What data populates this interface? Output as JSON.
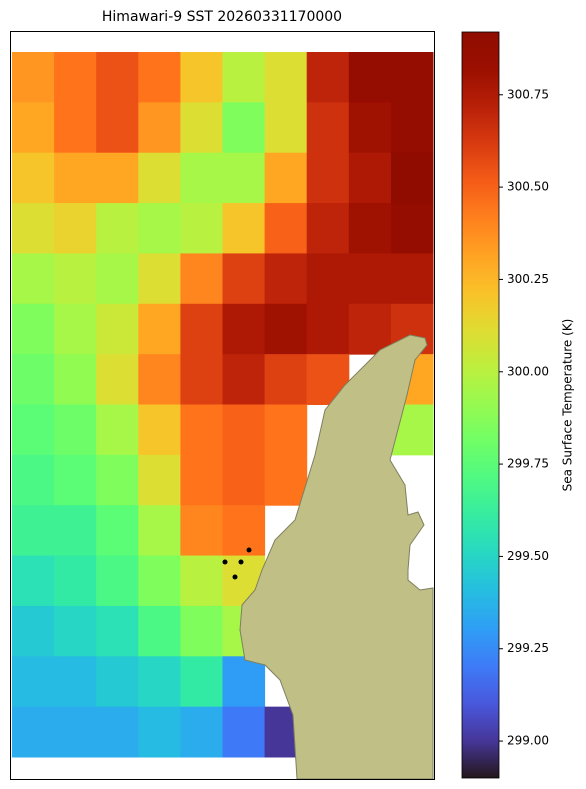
{
  "chart_data": {
    "type": "heatmap",
    "title": "Himawari-9 SST 20260331170000",
    "colorbar": {
      "label": "Sea Surface Temperature (K)",
      "lim": [
        298.9,
        300.92
      ],
      "colormap": "turbo",
      "ticks": [
        {
          "value": 299,
          "label": "299.00"
        },
        {
          "value": 299.25,
          "label": "299.25"
        },
        {
          "value": 299.5,
          "label": "299.50"
        },
        {
          "value": 299.75,
          "label": "299.75"
        },
        {
          "value": 300,
          "label": "300.00"
        },
        {
          "value": 300.25,
          "label": "300.25"
        },
        {
          "value": 300.5,
          "label": "300.50"
        },
        {
          "value": 300.75,
          "label": "300.75"
        }
      ]
    },
    "values": [
      [
        300.35,
        300.45,
        300.55,
        300.45,
        300.2,
        300.0,
        300.1,
        300.7,
        300.85,
        300.85
      ],
      [
        300.3,
        300.45,
        300.55,
        300.35,
        300.1,
        299.85,
        300.1,
        300.65,
        300.8,
        300.85
      ],
      [
        300.2,
        300.3,
        300.3,
        300.1,
        299.95,
        299.95,
        300.3,
        300.65,
        300.75,
        300.9
      ],
      [
        300.1,
        300.15,
        300.0,
        299.95,
        300.0,
        300.2,
        300.5,
        300.7,
        300.8,
        300.85
      ],
      [
        299.95,
        300.0,
        299.95,
        300.1,
        300.4,
        300.6,
        300.7,
        300.75,
        300.75,
        300.75
      ],
      [
        299.85,
        299.95,
        300.05,
        300.3,
        300.6,
        300.75,
        300.8,
        300.75,
        300.7,
        300.65
      ],
      [
        299.8,
        299.9,
        300.1,
        300.4,
        300.6,
        300.7,
        300.6,
        300.55,
        null,
        300.3
      ],
      [
        299.75,
        299.8,
        299.95,
        300.2,
        300.45,
        300.5,
        300.45,
        null,
        300.0,
        299.95
      ],
      [
        299.7,
        299.75,
        299.85,
        300.1,
        300.45,
        300.5,
        300.45,
        null,
        null,
        null
      ],
      [
        299.65,
        299.65,
        299.75,
        299.95,
        300.4,
        300.45,
        null,
        null,
        null,
        null
      ],
      [
        299.55,
        299.6,
        299.7,
        299.85,
        300.0,
        300.1,
        null,
        null,
        null,
        null
      ],
      [
        299.45,
        299.5,
        299.55,
        299.7,
        299.85,
        299.95,
        null,
        null,
        null,
        null
      ],
      [
        299.4,
        299.4,
        299.45,
        299.5,
        299.6,
        299.3,
        null,
        null,
        null,
        null
      ],
      [
        299.35,
        299.35,
        299.35,
        299.4,
        299.35,
        299.2,
        299.0,
        null,
        null,
        null
      ]
    ]
  }
}
